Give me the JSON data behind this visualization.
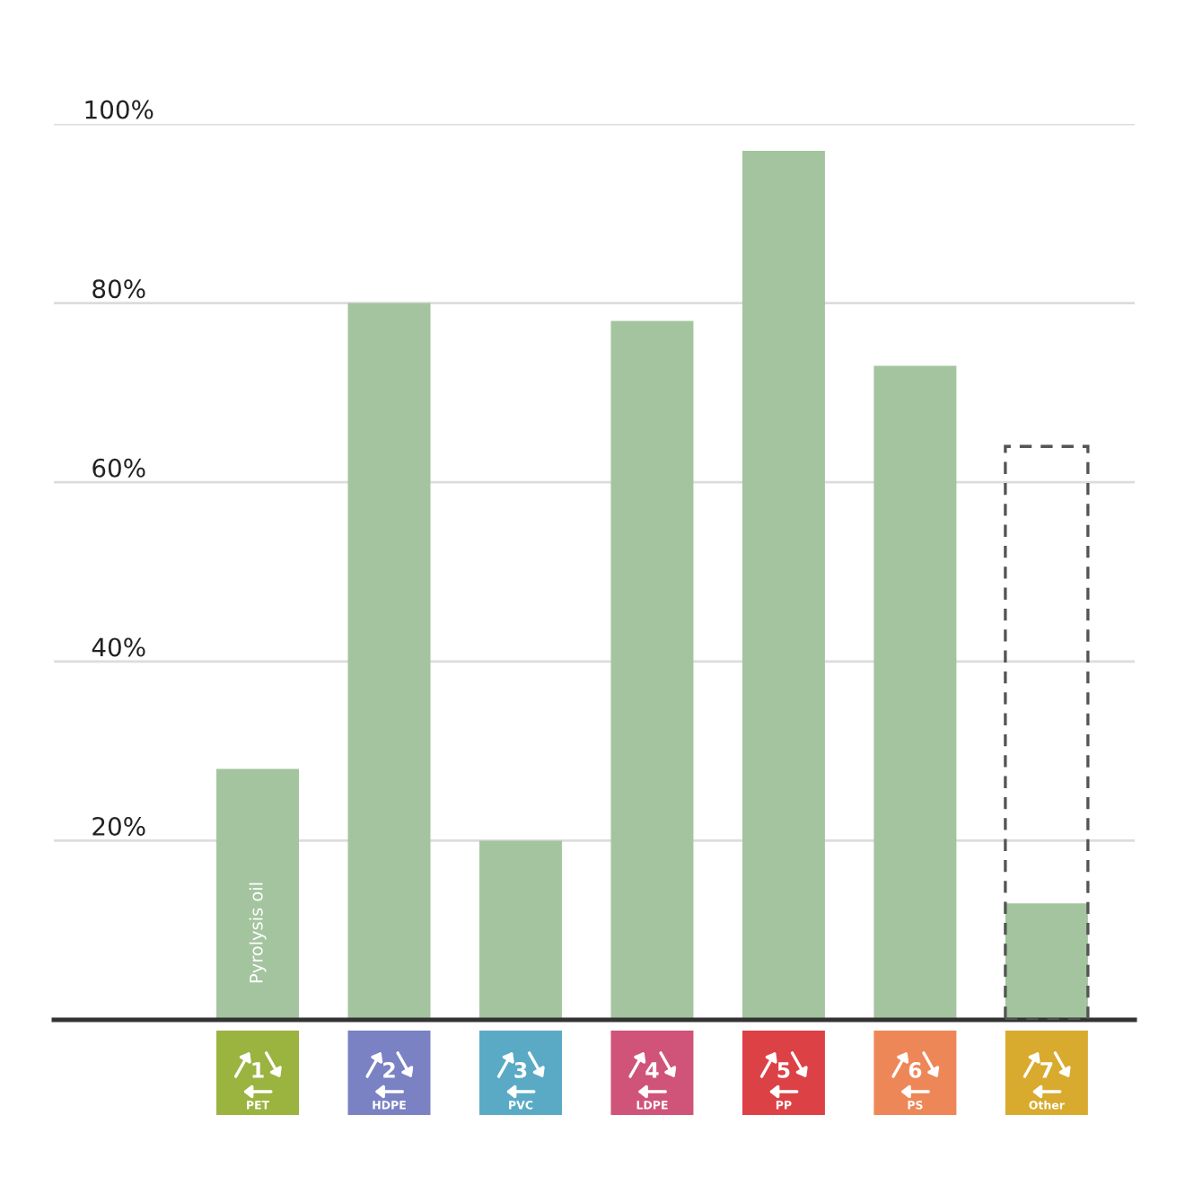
{
  "chart_data": {
    "type": "bar",
    "categories": [
      "1\nPET",
      "2\nHDPE",
      "3\nPVC",
      "4\nLDPE",
      "5\nPP",
      "6\nPS",
      "7\nOther"
    ],
    "series": [
      {
        "color": "#a4c49f",
        "values": [
          28,
          80,
          20,
          78,
          97,
          73,
          13
        ]
      },
      {
        "color": "#555555",
        "line_style": "dashed",
        "values": [
          null,
          null,
          null,
          null,
          null,
          null,
          64
        ]
      }
    ],
    "ylim": [
      0,
      100
    ],
    "yticks": [
      {
        "value": 20,
        "label": "20%"
      },
      {
        "value": 40,
        "label": "40%"
      },
      {
        "value": 60,
        "label": "60%"
      },
      {
        "value": 80,
        "label": "80%"
      },
      {
        "value": 100,
        "label": "100%"
      }
    ],
    "grid": "y",
    "annotations": [
      "Pyrolysis oil"
    ]
  }
}
